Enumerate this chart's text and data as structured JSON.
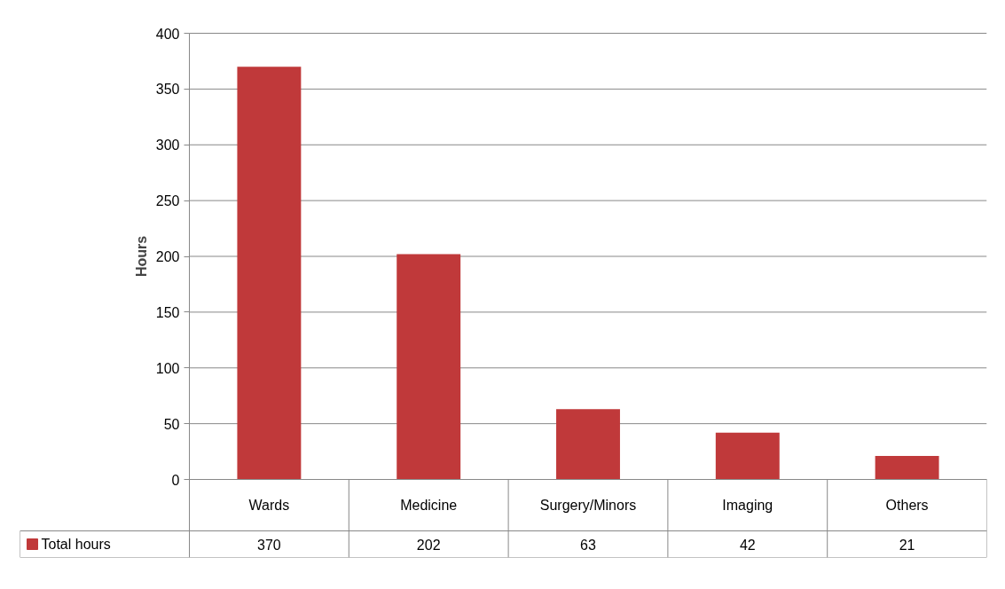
{
  "chart_data": {
    "type": "bar",
    "ylabel": "Hours",
    "categories": [
      "Wards",
      "Medicine",
      "Surgery/Minors",
      "Imaging",
      "Others"
    ],
    "series": [
      {
        "name": "Total hours",
        "color": "#c0393a",
        "values": [
          370,
          202,
          63,
          42,
          21
        ]
      }
    ],
    "ylim": [
      0,
      400
    ],
    "yticks": [
      0,
      50,
      100,
      150,
      200,
      250,
      300,
      350,
      400
    ],
    "grid": "y",
    "legend": "bottom",
    "data_labels": true
  }
}
